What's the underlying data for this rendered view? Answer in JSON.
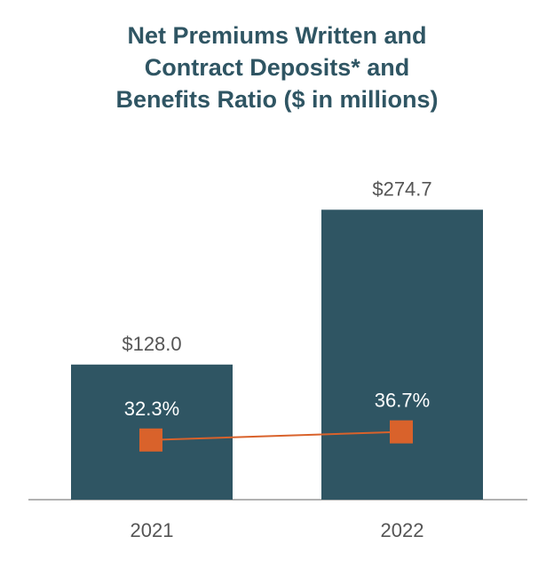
{
  "chart_data": {
    "type": "bar",
    "title_lines": [
      "Net Premiums Written and",
      "Contract Deposits* and",
      "Benefits Ratio ($ in millions)"
    ],
    "categories": [
      "2021",
      "2022"
    ],
    "series": [
      {
        "name": "Net Premiums Written and Contract Deposits",
        "type": "bar",
        "values": [
          128.0,
          274.7
        ],
        "labels": [
          "$128.0",
          "$274.7"
        ]
      },
      {
        "name": "Benefits Ratio",
        "type": "line",
        "values": [
          32.3,
          36.7
        ],
        "labels": [
          "32.3%",
          "36.7%"
        ]
      }
    ],
    "ylim": [
      0,
      280
    ],
    "ratio_ylim": [
      0,
      160
    ],
    "grid": false,
    "colors": {
      "bar": "#2f5563",
      "line": "#d9622b",
      "axis": "#999999",
      "title": "#2f5563"
    }
  }
}
